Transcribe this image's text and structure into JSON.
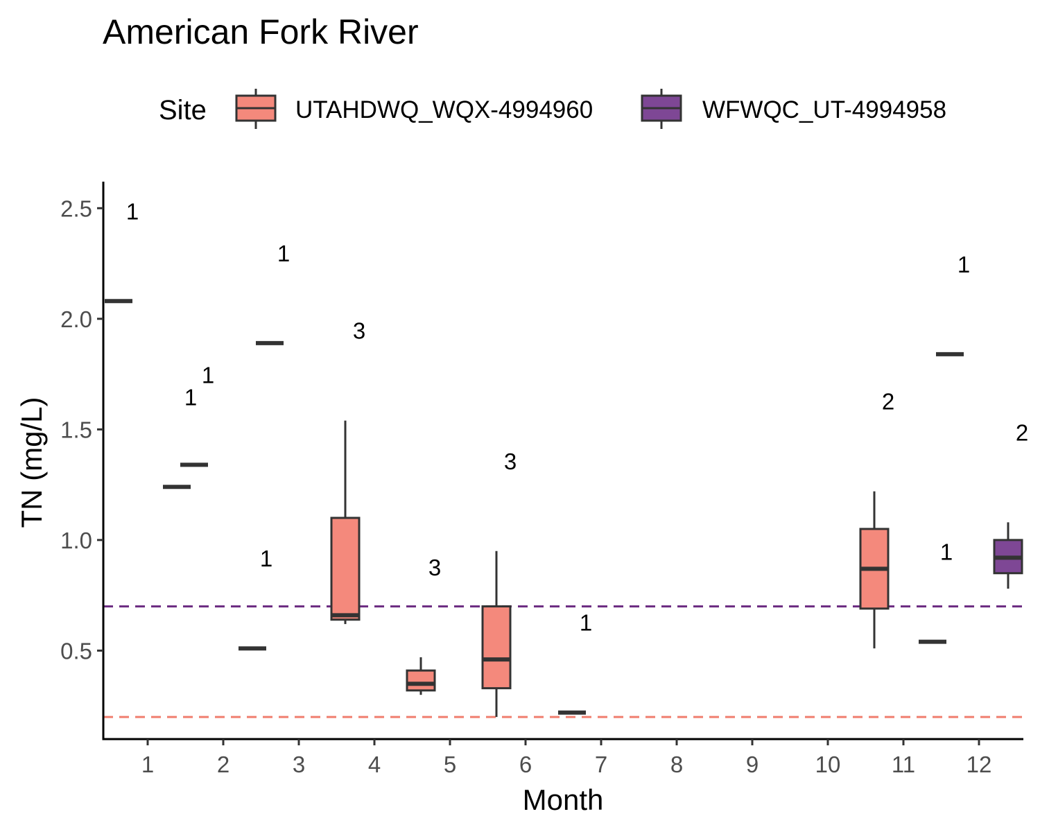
{
  "chart_data": {
    "type": "box",
    "title": "American Fork River",
    "xlabel": "Month",
    "ylabel": "TN (mg/L)",
    "ylim": [
      0.1,
      2.62
    ],
    "yticks": [
      "0.5",
      "1.0",
      "1.5",
      "2.0",
      "2.5"
    ],
    "categories": [
      "1",
      "2",
      "3",
      "4",
      "5",
      "6",
      "7",
      "8",
      "9",
      "10",
      "11",
      "12"
    ],
    "legend": {
      "title": "Site",
      "position": "top"
    },
    "grid": false,
    "series": [
      {
        "name": "UTAHDWQ_WQX-4994960",
        "color": "#F4897C",
        "boxes": [
          {
            "x": 1,
            "min": 2.08,
            "q1": 2.08,
            "median": 2.08,
            "q3": 2.08,
            "max": 2.08,
            "n": "1"
          },
          {
            "x": 2,
            "min": 1.34,
            "q1": 1.34,
            "median": 1.34,
            "q3": 1.34,
            "max": 1.34,
            "n": "1"
          },
          {
            "x": 3,
            "min": 1.89,
            "q1": 1.89,
            "median": 1.89,
            "q3": 1.89,
            "max": 1.89,
            "n": "1"
          },
          {
            "x": 4,
            "min": 0.62,
            "q1": 0.64,
            "median": 0.66,
            "q3": 1.1,
            "max": 1.54,
            "n": "3"
          },
          {
            "x": 5,
            "min": 0.3,
            "q1": 0.32,
            "median": 0.35,
            "q3": 0.41,
            "max": 0.47,
            "n": "3"
          },
          {
            "x": 6,
            "min": 0.2,
            "q1": 0.33,
            "median": 0.46,
            "q3": 0.7,
            "max": 0.95,
            "n": "3"
          },
          {
            "x": 7,
            "min": 0.22,
            "q1": 0.22,
            "median": 0.22,
            "q3": 0.22,
            "max": 0.22,
            "n": "1"
          },
          {
            "x": 11,
            "min": 0.51,
            "q1": 0.69,
            "median": 0.87,
            "q3": 1.05,
            "max": 1.22,
            "n": "2"
          },
          {
            "x": 12,
            "min": 1.84,
            "q1": 1.84,
            "median": 1.84,
            "q3": 1.84,
            "max": 1.84,
            "n": "1"
          }
        ]
      },
      {
        "name": "WFWQC_UT-4994958",
        "color": "#7E4795",
        "boxes": [
          {
            "x": 1,
            "min": 1.24,
            "q1": 1.24,
            "median": 1.24,
            "q3": 1.24,
            "max": 1.24,
            "n": "1"
          },
          {
            "x": 2,
            "min": 0.51,
            "q1": 0.51,
            "median": 0.51,
            "q3": 0.51,
            "max": 0.51,
            "n": "1"
          },
          {
            "x": 11,
            "min": 0.54,
            "q1": 0.54,
            "median": 0.54,
            "q3": 0.54,
            "max": 0.54,
            "n": "1"
          },
          {
            "x": 12,
            "min": 0.78,
            "q1": 0.85,
            "median": 0.92,
            "q3": 1.0,
            "max": 1.08,
            "n": "2"
          }
        ]
      }
    ],
    "reference_lines": [
      {
        "y": 0.7,
        "color": "#6B2A80",
        "style": "dashed"
      },
      {
        "y": 0.2,
        "color": "#F07E6E",
        "style": "dashed"
      }
    ]
  }
}
